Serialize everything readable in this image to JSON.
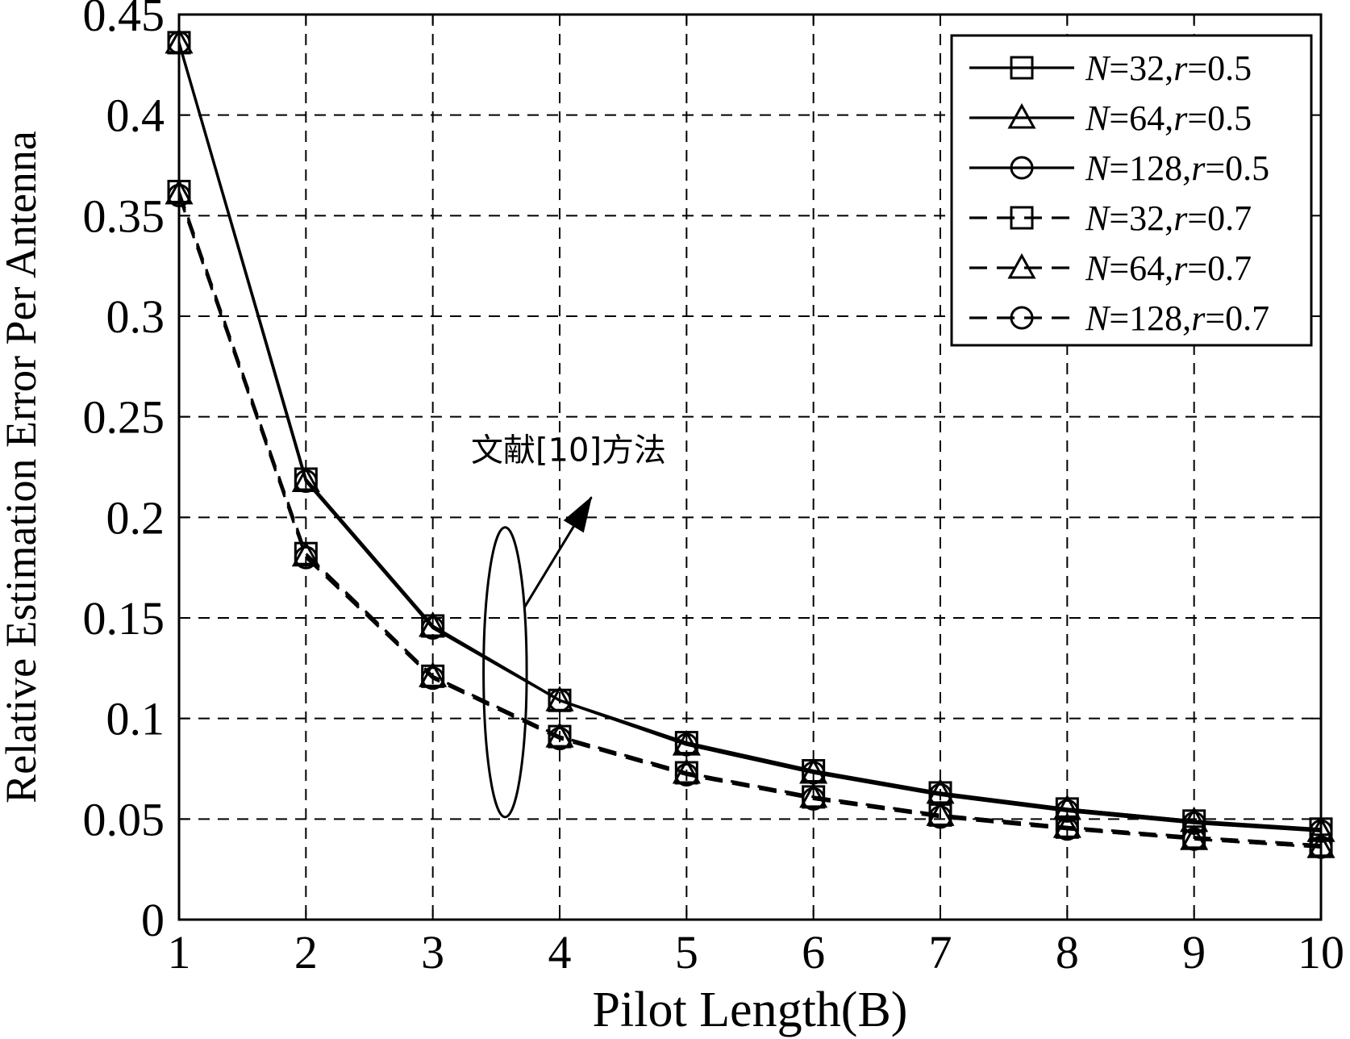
{
  "chart_data": {
    "type": "line",
    "xlabel": "Pilot Length(B)",
    "ylabel": "Relative Estimation Error Per Antenna",
    "xlim": [
      1,
      10
    ],
    "ylim": [
      0,
      0.45
    ],
    "xticks": [
      "1",
      "2",
      "3",
      "4",
      "5",
      "6",
      "7",
      "8",
      "9",
      "10"
    ],
    "yticks": [
      "0",
      "0.05",
      "0.1",
      "0.15",
      "0.2",
      "0.25",
      "0.3",
      "0.35",
      "0.4",
      "0.45"
    ],
    "grid": true,
    "legend_position": "top-right",
    "x": [
      1,
      2,
      3,
      4,
      5,
      6,
      7,
      8,
      9,
      10
    ],
    "series": [
      {
        "name": "N=32,r=0.5",
        "n": "32",
        "r": "0.5",
        "marker": "square",
        "line": "solid",
        "values": [
          0.436,
          0.219,
          0.146,
          0.109,
          0.088,
          0.074,
          0.063,
          0.055,
          0.049,
          0.045
        ]
      },
      {
        "name": "N=64,r=0.5",
        "n": "64",
        "r": "0.5",
        "marker": "triangle",
        "line": "solid",
        "values": [
          0.436,
          0.218,
          0.146,
          0.109,
          0.087,
          0.073,
          0.063,
          0.055,
          0.049,
          0.044
        ]
      },
      {
        "name": "N=128,r=0.5",
        "n": "128",
        "r": "0.5",
        "marker": "circle",
        "line": "solid",
        "values": [
          0.436,
          0.218,
          0.145,
          0.109,
          0.087,
          0.073,
          0.062,
          0.054,
          0.048,
          0.044
        ]
      },
      {
        "name": "N=32,r=0.7",
        "n": "32",
        "r": "0.7",
        "marker": "square",
        "line": "dashed",
        "values": [
          0.362,
          0.182,
          0.121,
          0.091,
          0.073,
          0.061,
          0.052,
          0.046,
          0.041,
          0.037
        ]
      },
      {
        "name": "N=64,r=0.7",
        "n": "64",
        "r": "0.7",
        "marker": "triangle",
        "line": "dashed",
        "values": [
          0.361,
          0.181,
          0.121,
          0.091,
          0.073,
          0.061,
          0.052,
          0.046,
          0.04,
          0.036
        ]
      },
      {
        "name": "N=128,r=0.7",
        "n": "128",
        "r": "0.7",
        "marker": "circle",
        "line": "dashed",
        "values": [
          0.36,
          0.18,
          0.12,
          0.09,
          0.072,
          0.06,
          0.051,
          0.045,
          0.04,
          0.036
        ]
      }
    ],
    "annotation": {
      "text": "文献[10]方法",
      "ellipse_center": [
        3.57,
        0.123
      ],
      "ellipse_radius": [
        0.17,
        0.072
      ],
      "arrow_from": [
        3.72,
        0.155
      ],
      "arrow_to": [
        4.25,
        0.21
      ],
      "text_anchor": [
        4.07,
        0.228
      ]
    }
  },
  "colors": {
    "line": "#000000",
    "grid": "#000000",
    "background": "#ffffff"
  }
}
